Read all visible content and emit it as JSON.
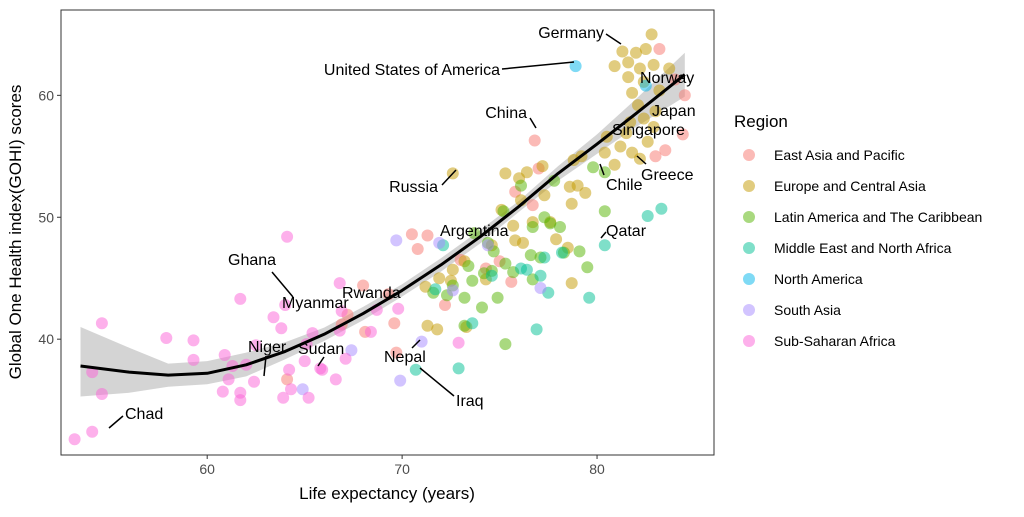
{
  "chart_data": {
    "type": "scatter",
    "title": "",
    "xlabel": "Life expectancy (years)",
    "ylabel": "Global One Health index(GOHI) scores",
    "xlim": [
      52.5,
      86
    ],
    "ylim": [
      30.5,
      67
    ],
    "xticks": [
      60,
      70,
      80
    ],
    "yticks": [
      40,
      50,
      60
    ],
    "grid": false,
    "legend": {
      "title": "Region",
      "position": "right"
    },
    "series": [
      {
        "name": "East Asia and Pacific",
        "color": "#F8766D",
        "points": [
          [
            83.2,
            63.8
          ],
          [
            84,
            61.3
          ],
          [
            84.5,
            60
          ],
          [
            84.4,
            56.8
          ],
          [
            83.5,
            55.5
          ],
          [
            83,
            55
          ],
          [
            76.8,
            56.3
          ],
          [
            77,
            54
          ],
          [
            70.5,
            48.6
          ],
          [
            71.3,
            48.5
          ],
          [
            74.3,
            45.8
          ],
          [
            75,
            46.4
          ],
          [
            75.6,
            44.7
          ],
          [
            69.3,
            43.7
          ],
          [
            69.6,
            41.3
          ],
          [
            67.2,
            42
          ],
          [
            68.1,
            40.6
          ],
          [
            68,
            44.4
          ],
          [
            69.7,
            38.9
          ],
          [
            64.1,
            36.7
          ],
          [
            75.8,
            52.1
          ],
          [
            73,
            46.5
          ],
          [
            70.8,
            47.4
          ],
          [
            66.9,
            41.2
          ],
          [
            72.2,
            42.8
          ],
          [
            76.7,
            51
          ]
        ]
      },
      {
        "name": "Europe and Central Asia",
        "color": "#C49A00",
        "points": [
          [
            82.8,
            65
          ],
          [
            81.3,
            63.6
          ],
          [
            82,
            63.5
          ],
          [
            82.5,
            63.8
          ],
          [
            80.9,
            62.4
          ],
          [
            81.6,
            62.7
          ],
          [
            82.2,
            62.2
          ],
          [
            82.9,
            62.5
          ],
          [
            83.7,
            62.2
          ],
          [
            81.6,
            61.5
          ],
          [
            82.4,
            61.1
          ],
          [
            81.8,
            60.2
          ],
          [
            83.2,
            60.4
          ],
          [
            82.1,
            59.2
          ],
          [
            83,
            58.7
          ],
          [
            82.4,
            58.1
          ],
          [
            81.7,
            57.8
          ],
          [
            82.9,
            57.4
          ],
          [
            80.5,
            56.6
          ],
          [
            81.5,
            56.9
          ],
          [
            81.2,
            55.8
          ],
          [
            82.6,
            56.2
          ],
          [
            81.8,
            55.3
          ],
          [
            80.4,
            55.3
          ],
          [
            82.2,
            54.8
          ],
          [
            80.9,
            54.3
          ],
          [
            79.2,
            55
          ],
          [
            78.8,
            54.7
          ],
          [
            77.2,
            54.2
          ],
          [
            76.4,
            53.7
          ],
          [
            75.3,
            53.6
          ],
          [
            76,
            53.2
          ],
          [
            79,
            52.6
          ],
          [
            78.6,
            52.5
          ],
          [
            79.4,
            52
          ],
          [
            77.3,
            51.8
          ],
          [
            76.1,
            51.4
          ],
          [
            75.1,
            50.6
          ],
          [
            78.7,
            51.1
          ],
          [
            72.6,
            53.6
          ],
          [
            77.6,
            49.6
          ],
          [
            76.7,
            49.6
          ],
          [
            75.7,
            49.3
          ],
          [
            75.8,
            48.1
          ],
          [
            74.6,
            47.7
          ],
          [
            78.5,
            47.5
          ],
          [
            73.2,
            46.4
          ],
          [
            72.6,
            45.7
          ],
          [
            71.9,
            45
          ],
          [
            74.3,
            44.9
          ],
          [
            72.5,
            44.8
          ],
          [
            71.2,
            44.3
          ],
          [
            71.3,
            41.1
          ],
          [
            71.8,
            40.8
          ],
          [
            73.3,
            41
          ],
          [
            76.2,
            47.9
          ],
          [
            77.9,
            48.2
          ],
          [
            78.7,
            44.6
          ]
        ]
      },
      {
        "name": "Latin America and The Caribbean",
        "color": "#53B400",
        "points": [
          [
            80.4,
            53.7
          ],
          [
            79.8,
            54.1
          ],
          [
            77.8,
            53
          ],
          [
            76.1,
            52.6
          ],
          [
            80.4,
            50.5
          ],
          [
            75.2,
            50.5
          ],
          [
            77.3,
            50
          ],
          [
            77.6,
            49.5
          ],
          [
            78.1,
            49.2
          ],
          [
            76.7,
            49.2
          ],
          [
            73.7,
            48.7
          ],
          [
            74.4,
            47.9
          ],
          [
            74.7,
            47.2
          ],
          [
            78.3,
            47.1
          ],
          [
            76.6,
            46.9
          ],
          [
            77.1,
            46.7
          ],
          [
            79.1,
            47.2
          ],
          [
            75.3,
            46.2
          ],
          [
            73.4,
            46
          ],
          [
            74.6,
            45.6
          ],
          [
            75.7,
            45.5
          ],
          [
            74.2,
            45.4
          ],
          [
            76.7,
            44.9
          ],
          [
            79.5,
            45.9
          ],
          [
            73.6,
            44.8
          ],
          [
            72.6,
            44.4
          ],
          [
            71.6,
            43.8
          ],
          [
            72.3,
            43.6
          ],
          [
            73.2,
            43.4
          ],
          [
            74.9,
            43.4
          ],
          [
            74.1,
            42.6
          ],
          [
            73.2,
            41.1
          ],
          [
            75.3,
            39.6
          ]
        ]
      },
      {
        "name": "Middle East and North Africa",
        "color": "#00C094",
        "points": [
          [
            83.3,
            50.7
          ],
          [
            82.6,
            50.1
          ],
          [
            80.4,
            47.7
          ],
          [
            78.2,
            47.1
          ],
          [
            77.3,
            46.7
          ],
          [
            76.1,
            45.8
          ],
          [
            77.1,
            45.2
          ],
          [
            74.6,
            45.2
          ],
          [
            76.4,
            45.7
          ],
          [
            72.1,
            47.7
          ],
          [
            71.7,
            44.1
          ],
          [
            77.5,
            43.8
          ],
          [
            79.6,
            43.4
          ],
          [
            76.9,
            40.8
          ],
          [
            72.9,
            37.6
          ],
          [
            70.7,
            37.5
          ],
          [
            73.6,
            41.3
          ]
        ]
      },
      {
        "name": "North America",
        "color": "#00B6EB",
        "points": [
          [
            78.9,
            62.4
          ],
          [
            82.5,
            60.8
          ]
        ]
      },
      {
        "name": "South Asia",
        "color": "#A58AFF",
        "points": [
          [
            69.7,
            48.1
          ],
          [
            71.9,
            47.9
          ],
          [
            72.6,
            44
          ],
          [
            77.1,
            44.2
          ],
          [
            71,
            39.8
          ],
          [
            67.4,
            39.1
          ],
          [
            64.9,
            35.9
          ],
          [
            69.9,
            36.6
          ],
          [
            74.4,
            47.7
          ]
        ]
      },
      {
        "name": "Sub-Saharan Africa",
        "color": "#FB61D7",
        "points": [
          [
            64.1,
            48.4
          ],
          [
            66.8,
            44.6
          ],
          [
            69.8,
            42.5
          ],
          [
            68.7,
            42.4
          ],
          [
            61.7,
            43.3
          ],
          [
            64,
            42.8
          ],
          [
            66.9,
            42.3
          ],
          [
            63.4,
            41.8
          ],
          [
            63.8,
            40.9
          ],
          [
            65.4,
            40.5
          ],
          [
            66.8,
            40.7
          ],
          [
            68.4,
            40.6
          ],
          [
            57.9,
            40.1
          ],
          [
            59.3,
            39.9
          ],
          [
            65.1,
            39.6
          ],
          [
            62.5,
            39.5
          ],
          [
            60.9,
            38.7
          ],
          [
            67.1,
            38.4
          ],
          [
            59.3,
            38.3
          ],
          [
            61.3,
            37.8
          ],
          [
            62,
            37.9
          ],
          [
            64.2,
            37.5
          ],
          [
            65.9,
            37.5
          ],
          [
            54.6,
            41.3
          ],
          [
            54.1,
            37.3
          ],
          [
            61.1,
            36.7
          ],
          [
            62.4,
            36.5
          ],
          [
            66.6,
            36.7
          ],
          [
            60.8,
            35.7
          ],
          [
            61.7,
            35.6
          ],
          [
            64.3,
            35.9
          ],
          [
            63.9,
            35.2
          ],
          [
            65.2,
            35.2
          ],
          [
            54.6,
            35.5
          ],
          [
            61.7,
            35
          ],
          [
            53.2,
            31.8
          ],
          [
            54.1,
            32.4
          ],
          [
            65,
            38.2
          ],
          [
            72.9,
            39.7
          ],
          [
            65.8,
            37.6
          ]
        ]
      }
    ],
    "trend": {
      "name": "fit",
      "x": [
        53.5,
        56,
        58,
        60,
        62,
        64,
        66,
        68,
        70,
        72,
        74,
        76,
        78,
        80,
        82,
        84.5
      ],
      "y": [
        37.8,
        37.3,
        37.05,
        37.2,
        37.9,
        39.0,
        40.4,
        42.1,
        44.0,
        46.1,
        48.4,
        50.9,
        53.6,
        56.0,
        58.5,
        61.7
      ],
      "lower": [
        35.3,
        35.6,
        36.1,
        36.3,
        36.95,
        38.35,
        39.85,
        41.55,
        43.5,
        45.55,
        47.85,
        50.45,
        53.0,
        55.2,
        57.4,
        59.9
      ],
      "upper": [
        41.0,
        39.3,
        38.0,
        38.2,
        38.9,
        39.75,
        40.95,
        42.65,
        44.5,
        46.65,
        48.95,
        51.35,
        54.2,
        56.8,
        59.7,
        63.5
      ]
    },
    "annotations": [
      {
        "label": "Germany",
        "x": 81.3,
        "y": 63.6
      },
      {
        "label": "United States of America",
        "x": 78.9,
        "y": 62.4
      },
      {
        "label": "Norway",
        "x": 82.5,
        "y": 60.8
      },
      {
        "label": "Japan",
        "x": 84.4,
        "y": 60.5
      },
      {
        "label": "China",
        "x": 76.8,
        "y": 56.3
      },
      {
        "label": "Singapore",
        "x": 83.5,
        "y": 57.2
      },
      {
        "label": "Greece",
        "x": 82.2,
        "y": 54.8
      },
      {
        "label": "Chile",
        "x": 80.4,
        "y": 53.7
      },
      {
        "label": "Russia",
        "x": 72.6,
        "y": 53.6
      },
      {
        "label": "Argentina",
        "x": 76.7,
        "y": 49.2
      },
      {
        "label": "Qatar",
        "x": 80.4,
        "y": 47.7
      },
      {
        "label": "Ghana",
        "x": 64.1,
        "y": 42.8
      },
      {
        "label": "Myanmar",
        "x": 66.8,
        "y": 42.4
      },
      {
        "label": "Rwanda",
        "x": 68.7,
        "y": 42.4
      },
      {
        "label": "Niger",
        "x": 62.4,
        "y": 36.5
      },
      {
        "label": "Sudan",
        "x": 65.8,
        "y": 37.6
      },
      {
        "label": "Nepal",
        "x": 71,
        "y": 39.8
      },
      {
        "label": "Iraq",
        "x": 70.7,
        "y": 37.5
      },
      {
        "label": "Chad",
        "x": 54.1,
        "y": 32.4
      }
    ]
  }
}
